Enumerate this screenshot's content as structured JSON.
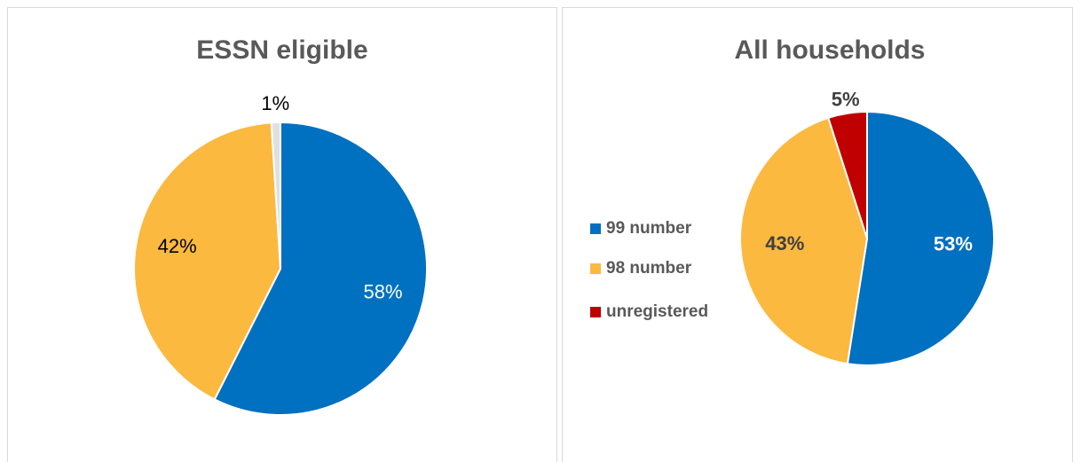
{
  "chart_data": [
    {
      "type": "pie",
      "title": "ESSN eligible",
      "values": [
        58,
        42,
        1
      ],
      "value_labels": [
        "58%",
        "42%",
        "1%"
      ],
      "colors": [
        "#0070c0",
        "#fbb93f",
        "#e0e0e0"
      ]
    },
    {
      "type": "pie",
      "title": "All households",
      "categories": [
        "99 number",
        "98 number",
        "unregistered"
      ],
      "values": [
        53,
        43,
        5
      ],
      "value_labels": [
        "53%",
        "43%",
        "5%"
      ],
      "colors": [
        "#0070c0",
        "#fbb93f",
        "#c00000"
      ],
      "legend": "left"
    }
  ]
}
